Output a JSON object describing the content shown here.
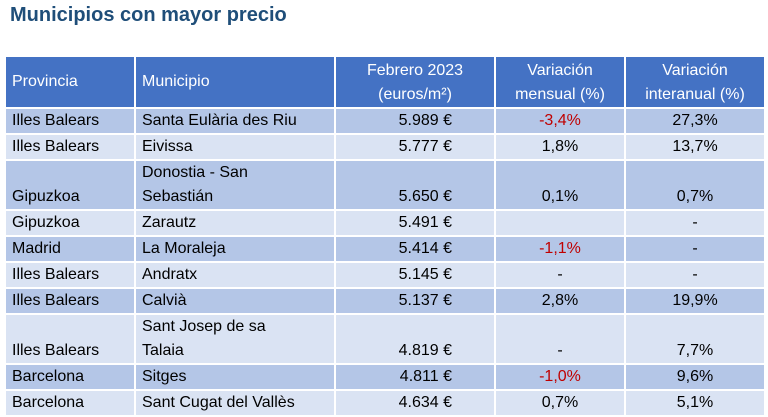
{
  "title": "Municipios con mayor precio",
  "headers": {
    "provincia": "Provincia",
    "municipio": "Municipio",
    "precio_l1": "Febrero 2023",
    "precio_l2": "(euros/m²)",
    "mensual_l1": "Variación",
    "mensual_l2": "mensual (%)",
    "interanual_l1": "Variación",
    "interanual_l2": "interanual (%)"
  },
  "rows": [
    {
      "provincia": "Illes Balears",
      "municipio": [
        "Santa Eulària des Riu"
      ],
      "precio": "5.989 €",
      "mensual": "-3,4%",
      "interanual": "27,3%"
    },
    {
      "provincia": "Illes Balears",
      "municipio": [
        "Eivissa"
      ],
      "precio": "5.777 €",
      "mensual": "1,8%",
      "interanual": "13,7%"
    },
    {
      "provincia": "Gipuzkoa",
      "municipio": [
        "Donostia - San",
        "Sebastián"
      ],
      "precio": "5.650 €",
      "mensual": "0,1%",
      "interanual": "0,7%"
    },
    {
      "provincia": "Gipuzkoa",
      "municipio": [
        "Zarautz"
      ],
      "precio": "5.491 €",
      "mensual": "",
      "interanual": "-"
    },
    {
      "provincia": "Madrid",
      "municipio": [
        "La Moraleja"
      ],
      "precio": "5.414 €",
      "mensual": "-1,1%",
      "interanual": "-"
    },
    {
      "provincia": "Illes Balears",
      "municipio": [
        "Andratx"
      ],
      "precio": "5.145 €",
      "mensual": "-",
      "interanual": "-"
    },
    {
      "provincia": "Illes Balears",
      "municipio": [
        "Calvià"
      ],
      "precio": "5.137 €",
      "mensual": "2,8%",
      "interanual": "19,9%"
    },
    {
      "provincia": "Illes Balears",
      "municipio": [
        "Sant Josep de sa",
        "Talaia"
      ],
      "precio": "4.819 €",
      "mensual": "-",
      "interanual": "7,7%"
    },
    {
      "provincia": "Barcelona",
      "municipio": [
        "Sitges"
      ],
      "precio": "4.811 €",
      "mensual": "-1,0%",
      "interanual": "9,6%"
    },
    {
      "provincia": "Barcelona",
      "municipio": [
        "Sant Cugat del Vallès"
      ],
      "precio": "4.634 €",
      "mensual": "0,7%",
      "interanual": "5,1%"
    }
  ],
  "colors": {
    "header_bg": "#4472c4",
    "row_dark": "#b4c6e7",
    "row_light": "#dae3f3",
    "negative": "#c00000",
    "title": "#1f4e79"
  }
}
